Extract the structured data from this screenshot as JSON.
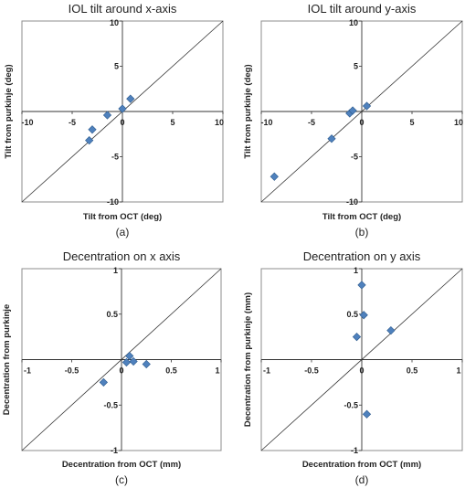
{
  "colors": {
    "marker": "#4f81bd",
    "marker_stroke": "#2c5a8c",
    "frame": "#8c8c8c",
    "axis": "#333333"
  },
  "chart_data": [
    {
      "type": "scatter",
      "title": "IOL tilt around x-axis",
      "caption": "(a)",
      "xlabel": "Tilt from OCT (deg)",
      "ylabel": "Tilt from purkinje (deg)",
      "xlim": [
        -10,
        10
      ],
      "ylim": [
        -10,
        10
      ],
      "xticks": [
        -10,
        -5,
        0,
        5,
        10
      ],
      "yticks": [
        -10,
        -5,
        5,
        10
      ],
      "identity_line": true,
      "points": [
        {
          "x": -3.3,
          "y": -3.2
        },
        {
          "x": -3.0,
          "y": -2.0
        },
        {
          "x": -1.5,
          "y": -0.4
        },
        {
          "x": 0.0,
          "y": 0.3
        },
        {
          "x": 0.8,
          "y": 1.4
        }
      ]
    },
    {
      "type": "scatter",
      "title": "IOL tilt around y-axis",
      "caption": "(b)",
      "xlabel": "Tilt from OCT (deg)",
      "ylabel": "Tilt from purkinje (deg)",
      "xlim": [
        -10,
        10
      ],
      "ylim": [
        -10,
        10
      ],
      "xticks": [
        -10,
        -5,
        0,
        5,
        10
      ],
      "yticks": [
        -10,
        -5,
        5,
        10
      ],
      "identity_line": true,
      "points": [
        {
          "x": -8.7,
          "y": -7.2
        },
        {
          "x": -3.0,
          "y": -3.0
        },
        {
          "x": -1.2,
          "y": -0.2
        },
        {
          "x": -0.9,
          "y": 0.1
        },
        {
          "x": 0.5,
          "y": 0.6
        }
      ]
    },
    {
      "type": "scatter",
      "title": "Decentration on x axis",
      "caption": "(c)",
      "xlabel": "Decentration from OCT (mm)",
      "ylabel": "Decentration from purkinje",
      "xlim": [
        -1,
        1
      ],
      "ylim": [
        -1,
        1
      ],
      "xticks": [
        -1,
        -0.5,
        0,
        0.5,
        1
      ],
      "yticks": [
        -1,
        -0.5,
        0.5,
        1
      ],
      "identity_line": true,
      "points": [
        {
          "x": -0.18,
          "y": -0.25
        },
        {
          "x": 0.05,
          "y": -0.03
        },
        {
          "x": 0.08,
          "y": 0.04
        },
        {
          "x": 0.12,
          "y": -0.02
        },
        {
          "x": 0.25,
          "y": -0.05
        }
      ]
    },
    {
      "type": "scatter",
      "title": "Decentration on y axis",
      "caption": "(d)",
      "xlabel": "Decentration from OCT (mm)",
      "ylabel": "Decentration from purkinje (mm)",
      "xlim": [
        -1,
        1
      ],
      "ylim": [
        -1,
        1
      ],
      "xticks": [
        -1,
        -0.5,
        0,
        0.5,
        1
      ],
      "yticks": [
        -1,
        -0.5,
        0.5,
        1
      ],
      "identity_line": true,
      "points": [
        {
          "x": -0.05,
          "y": 0.25
        },
        {
          "x": 0.0,
          "y": 0.82
        },
        {
          "x": 0.02,
          "y": 0.49
        },
        {
          "x": 0.05,
          "y": -0.6
        },
        {
          "x": 0.29,
          "y": 0.32
        }
      ]
    }
  ]
}
